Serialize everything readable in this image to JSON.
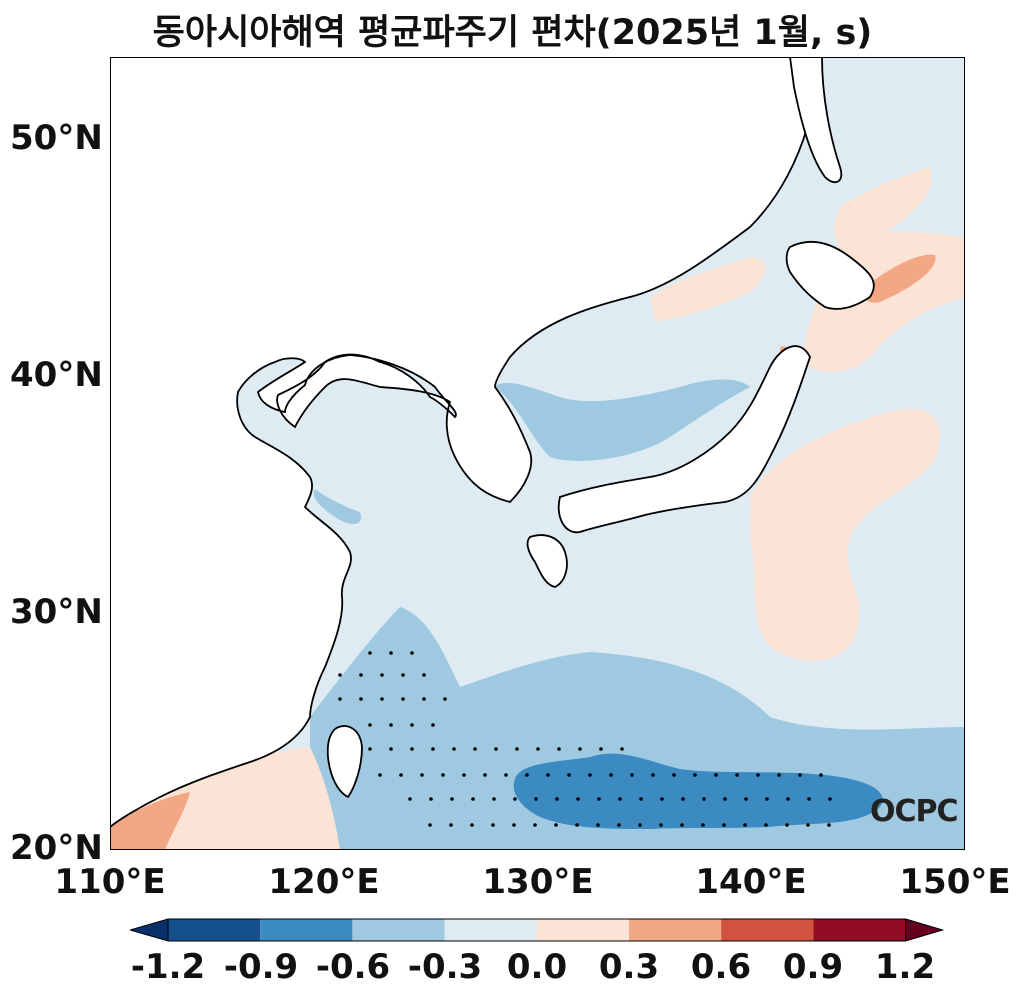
{
  "title": "동아시아해역 평균파주기 편차(2025년 1월, s)",
  "logo": "OCPC",
  "axes": {
    "lat_ticks": [
      "50°N",
      "40°N",
      "30°N",
      "20°N"
    ],
    "lon_ticks": [
      "110°E",
      "120°E",
      "130°E",
      "140°E",
      "150°E"
    ]
  },
  "colorbar": {
    "ticks": [
      "-1.2",
      "-0.9",
      "-0.6",
      "-0.3",
      "0.0",
      "0.3",
      "0.6",
      "0.9",
      "1.2"
    ],
    "colors": [
      "#08306b",
      "#154f8e",
      "#3b8bc2",
      "#9ec9e0",
      "#deebf3",
      "#fbe3d6",
      "#f4a785",
      "#d0523f",
      "#910d23",
      "#67001f"
    ]
  },
  "legend_colors": {
    "land": "#ffffff",
    "coast": "#000000"
  }
}
